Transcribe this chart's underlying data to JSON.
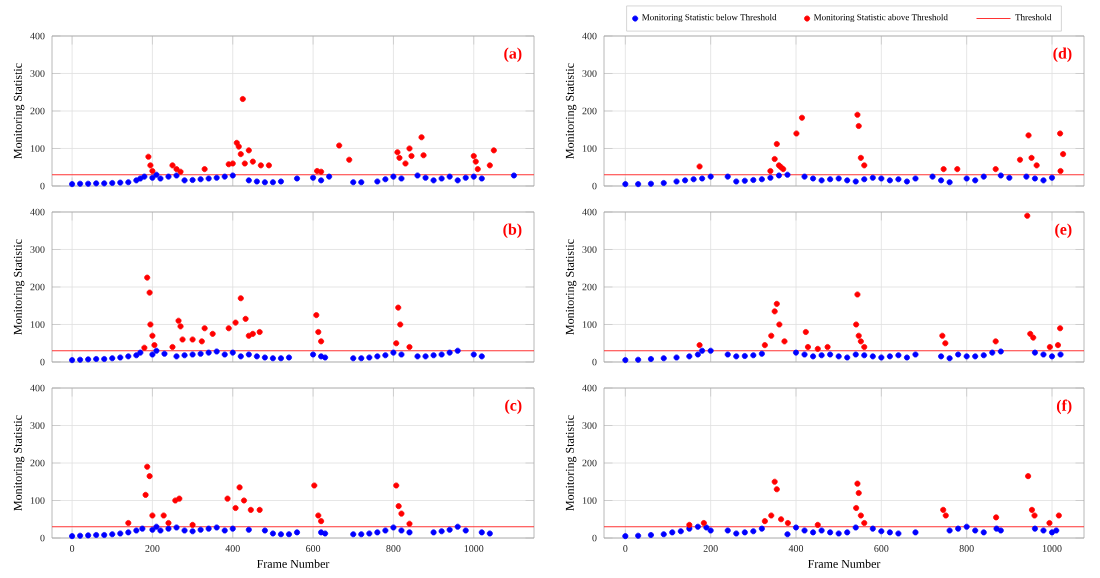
{
  "chart_data": [
    {
      "type": "scatter",
      "title": "(a)",
      "ylabel": "Monitoring Statistic",
      "xlim": [
        -50,
        1150
      ],
      "ylim": [
        0,
        400
      ],
      "xticks": [
        0,
        200,
        400,
        600,
        800,
        1000
      ],
      "yticks": [
        0,
        100,
        200,
        300,
        400
      ],
      "grid": true,
      "tick_labels": "y",
      "series": [
        {
          "color": "#0000ff",
          "x": [
            0,
            20,
            40,
            60,
            80,
            100,
            120,
            140,
            160,
            170,
            180,
            200,
            210,
            220,
            240,
            260,
            280,
            300,
            320,
            340,
            360,
            380,
            400,
            440,
            460,
            480,
            500,
            520,
            560,
            600,
            620,
            640,
            700,
            720,
            760,
            780,
            800,
            820,
            860,
            880,
            900,
            920,
            940,
            960,
            980,
            1000,
            1020,
            1100
          ],
          "values": [
            5,
            6,
            6,
            7,
            7,
            8,
            9,
            10,
            15,
            20,
            25,
            22,
            30,
            20,
            25,
            28,
            15,
            16,
            18,
            20,
            22,
            25,
            28,
            15,
            12,
            10,
            10,
            12,
            20,
            22,
            15,
            25,
            10,
            10,
            12,
            18,
            25,
            20,
            28,
            22,
            15,
            20,
            25,
            15,
            22,
            25,
            20,
            28
          ]
        },
        {
          "color": "#ff0000",
          "x": [
            190,
            195,
            200,
            250,
            260,
            270,
            330,
            390,
            400,
            410,
            415,
            420,
            425,
            430,
            440,
            450,
            470,
            490,
            610,
            620,
            665,
            690,
            810,
            815,
            830,
            840,
            845,
            870,
            875,
            1000,
            1005,
            1010,
            1040,
            1050
          ],
          "values": [
            78,
            55,
            40,
            55,
            45,
            38,
            45,
            58,
            60,
            115,
            105,
            85,
            232,
            60,
            95,
            65,
            55,
            55,
            40,
            38,
            108,
            70,
            90,
            75,
            60,
            100,
            80,
            130,
            82,
            80,
            65,
            45,
            55,
            95
          ]
        }
      ],
      "ref_lines": [
        {
          "axis": "y",
          "value": 30,
          "color": "#ff3333"
        }
      ]
    },
    {
      "type": "scatter",
      "title": "(b)",
      "ylabel": "Monitoring Statistic",
      "xlim": [
        -50,
        1150
      ],
      "ylim": [
        0,
        400
      ],
      "xticks": [
        0,
        200,
        400,
        600,
        800,
        1000
      ],
      "yticks": [
        0,
        100,
        200,
        300,
        400
      ],
      "grid": true,
      "tick_labels": "y",
      "series": [
        {
          "color": "#0000ff",
          "x": [
            0,
            20,
            40,
            60,
            80,
            100,
            120,
            140,
            160,
            170,
            200,
            210,
            230,
            260,
            280,
            300,
            320,
            340,
            360,
            380,
            400,
            420,
            440,
            460,
            480,
            500,
            520,
            540,
            600,
            620,
            630,
            700,
            720,
            740,
            760,
            780,
            800,
            820,
            860,
            880,
            900,
            920,
            940,
            960,
            1000,
            1020
          ],
          "values": [
            5,
            6,
            7,
            8,
            8,
            10,
            12,
            15,
            18,
            25,
            20,
            30,
            22,
            15,
            18,
            20,
            22,
            25,
            28,
            20,
            25,
            15,
            20,
            15,
            12,
            10,
            10,
            12,
            20,
            15,
            12,
            10,
            10,
            12,
            15,
            18,
            25,
            20,
            15,
            15,
            18,
            20,
            25,
            30,
            20,
            15
          ]
        },
        {
          "color": "#ff0000",
          "x": [
            180,
            187,
            193,
            195,
            200,
            205,
            250,
            265,
            270,
            275,
            300,
            323,
            330,
            350,
            390,
            407,
            420,
            432,
            440,
            450,
            467,
            608,
            613,
            620,
            807,
            812,
            817,
            840
          ],
          "values": [
            38,
            225,
            185,
            100,
            70,
            45,
            40,
            110,
            95,
            60,
            60,
            55,
            90,
            75,
            90,
            105,
            170,
            115,
            70,
            75,
            80,
            125,
            80,
            55,
            50,
            145,
            100,
            40
          ]
        }
      ],
      "ref_lines": [
        {
          "axis": "y",
          "value": 30,
          "color": "#ff3333"
        }
      ]
    },
    {
      "type": "scatter",
      "title": "(c)",
      "xlabel": "Frame Number",
      "ylabel": "Monitoring Statistic",
      "xlim": [
        -50,
        1150
      ],
      "ylim": [
        0,
        400
      ],
      "xticks": [
        0,
        200,
        400,
        600,
        800,
        1000
      ],
      "yticks": [
        0,
        100,
        200,
        300,
        400
      ],
      "grid": true,
      "series": [
        {
          "color": "#0000ff",
          "x": [
            0,
            20,
            40,
            60,
            80,
            100,
            120,
            140,
            160,
            175,
            200,
            210,
            220,
            240,
            260,
            280,
            300,
            320,
            340,
            360,
            380,
            400,
            440,
            480,
            500,
            520,
            540,
            560,
            620,
            630,
            700,
            720,
            740,
            760,
            780,
            800,
            820,
            840,
            900,
            920,
            940,
            960,
            980,
            1020,
            1040
          ],
          "values": [
            5,
            6,
            7,
            8,
            8,
            10,
            12,
            15,
            20,
            25,
            22,
            30,
            20,
            25,
            28,
            20,
            18,
            22,
            25,
            28,
            20,
            25,
            22,
            20,
            12,
            10,
            10,
            15,
            15,
            12,
            10,
            10,
            12,
            15,
            20,
            28,
            20,
            15,
            15,
            18,
            22,
            30,
            20,
            15,
            12
          ]
        },
        {
          "color": "#ff0000",
          "x": [
            140,
            183,
            187,
            193,
            200,
            228,
            240,
            257,
            267,
            300,
            387,
            407,
            417,
            428,
            445,
            467,
            603,
            613,
            620,
            807,
            813,
            820,
            840
          ],
          "values": [
            40,
            115,
            190,
            165,
            60,
            60,
            40,
            100,
            105,
            35,
            105,
            80,
            135,
            100,
            75,
            75,
            140,
            60,
            45,
            140,
            85,
            65,
            38
          ]
        }
      ],
      "ref_lines": [
        {
          "axis": "y",
          "value": 30,
          "color": "#ff3333"
        }
      ]
    },
    {
      "type": "scatter",
      "title": "(d)",
      "ylabel": "Monitoring Statistic",
      "xlim": [
        -50,
        1075
      ],
      "ylim": [
        0,
        400
      ],
      "xticks": [
        0,
        200,
        400,
        600,
        800,
        1000
      ],
      "yticks": [
        0,
        100,
        200,
        300,
        400
      ],
      "grid": true,
      "tick_labels": "y",
      "legend": "top",
      "series": [
        {
          "name": "Monitoring Statistic below Threshold",
          "color": "#0000ff",
          "x": [
            0,
            30,
            60,
            90,
            120,
            140,
            160,
            180,
            200,
            240,
            260,
            280,
            300,
            320,
            340,
            360,
            380,
            420,
            440,
            460,
            480,
            500,
            520,
            540,
            560,
            580,
            600,
            620,
            640,
            660,
            680,
            720,
            740,
            760,
            800,
            820,
            840,
            880,
            900,
            940,
            960,
            980,
            1000
          ],
          "values": [
            5,
            5,
            6,
            8,
            12,
            15,
            18,
            20,
            25,
            25,
            12,
            14,
            16,
            18,
            22,
            28,
            30,
            25,
            20,
            15,
            18,
            20,
            15,
            12,
            18,
            22,
            20,
            15,
            18,
            12,
            20,
            25,
            15,
            10,
            20,
            15,
            25,
            28,
            22,
            25,
            20,
            15,
            22
          ]
        },
        {
          "name": "Monitoring Statistic above Threshold",
          "color": "#ff0000",
          "x": [
            174,
            340,
            350,
            355,
            360,
            365,
            370,
            401,
            414,
            544,
            547,
            552,
            560,
            746,
            778,
            868,
            925,
            945,
            952,
            964,
            1019,
            1020,
            1026
          ],
          "values": [
            52,
            40,
            72,
            112,
            55,
            50,
            45,
            140,
            182,
            190,
            160,
            75,
            55,
            45,
            45,
            45,
            70,
            135,
            75,
            55,
            140,
            40,
            85
          ]
        }
      ],
      "ref_lines": [
        {
          "axis": "y",
          "value": 30,
          "label": "Threshold",
          "color": "#ff3333"
        }
      ]
    },
    {
      "type": "scatter",
      "title": "(e)",
      "ylabel": "Monitoring Statistic",
      "xlim": [
        -50,
        1075
      ],
      "ylim": [
        0,
        400
      ],
      "xticks": [
        0,
        200,
        400,
        600,
        800,
        1000
      ],
      "yticks": [
        0,
        100,
        200,
        300,
        400
      ],
      "grid": true,
      "tick_labels": "y",
      "series": [
        {
          "color": "#0000ff",
          "x": [
            0,
            30,
            60,
            90,
            120,
            150,
            170,
            180,
            200,
            240,
            260,
            280,
            300,
            320,
            400,
            420,
            440,
            460,
            480,
            500,
            520,
            540,
            560,
            580,
            600,
            620,
            640,
            660,
            680,
            740,
            760,
            780,
            800,
            820,
            840,
            860,
            880,
            960,
            980,
            1000,
            1020
          ],
          "values": [
            5,
            6,
            8,
            10,
            12,
            15,
            20,
            30,
            30,
            20,
            15,
            16,
            18,
            22,
            25,
            20,
            15,
            18,
            20,
            15,
            12,
            20,
            18,
            15,
            12,
            15,
            18,
            12,
            20,
            15,
            10,
            20,
            15,
            15,
            18,
            25,
            28,
            25,
            20,
            15,
            20
          ]
        },
        {
          "color": "#ff0000",
          "x": [
            174,
            327,
            342,
            350,
            355,
            361,
            373,
            423,
            428,
            451,
            474,
            541,
            544,
            547,
            552,
            560,
            743,
            750,
            868,
            942,
            949,
            956,
            995,
            1014,
            1019
          ],
          "values": [
            45,
            45,
            70,
            135,
            155,
            100,
            55,
            80,
            40,
            35,
            40,
            100,
            180,
            70,
            55,
            40,
            70,
            50,
            55,
            390,
            75,
            65,
            40,
            45,
            90
          ]
        }
      ],
      "ref_lines": [
        {
          "axis": "y",
          "value": 30,
          "color": "#ff3333"
        }
      ]
    },
    {
      "type": "scatter",
      "title": "(f)",
      "xlabel": "Frame Number",
      "ylabel": "Monitoring Statistic",
      "xlim": [
        -50,
        1075
      ],
      "ylim": [
        0,
        400
      ],
      "xticks": [
        0,
        200,
        400,
        600,
        800,
        1000
      ],
      "yticks": [
        0,
        100,
        200,
        300,
        400
      ],
      "grid": true,
      "series": [
        {
          "color": "#0000ff",
          "x": [
            0,
            30,
            60,
            90,
            110,
            130,
            150,
            170,
            190,
            200,
            240,
            260,
            280,
            300,
            320,
            380,
            400,
            420,
            440,
            460,
            480,
            500,
            520,
            540,
            580,
            600,
            620,
            640,
            680,
            760,
            780,
            800,
            820,
            840,
            870,
            880,
            960,
            980,
            1000,
            1010
          ],
          "values": [
            5,
            6,
            8,
            10,
            15,
            18,
            25,
            30,
            28,
            20,
            20,
            12,
            15,
            18,
            25,
            10,
            28,
            20,
            15,
            20,
            15,
            12,
            15,
            28,
            25,
            18,
            15,
            12,
            15,
            20,
            25,
            30,
            20,
            15,
            25,
            20,
            25,
            20,
            15,
            20
          ]
        },
        {
          "color": "#ff0000",
          "x": [
            150,
            184,
            327,
            342,
            350,
            355,
            365,
            381,
            451,
            541,
            544,
            547,
            552,
            560,
            745,
            751,
            869,
            944,
            953,
            959,
            994,
            1016
          ],
          "values": [
            35,
            40,
            45,
            60,
            150,
            130,
            50,
            40,
            35,
            80,
            145,
            120,
            60,
            40,
            75,
            60,
            55,
            165,
            75,
            60,
            40,
            60
          ]
        }
      ],
      "ref_lines": [
        {
          "axis": "y",
          "value": 30,
          "color": "#ff3333"
        }
      ]
    }
  ]
}
